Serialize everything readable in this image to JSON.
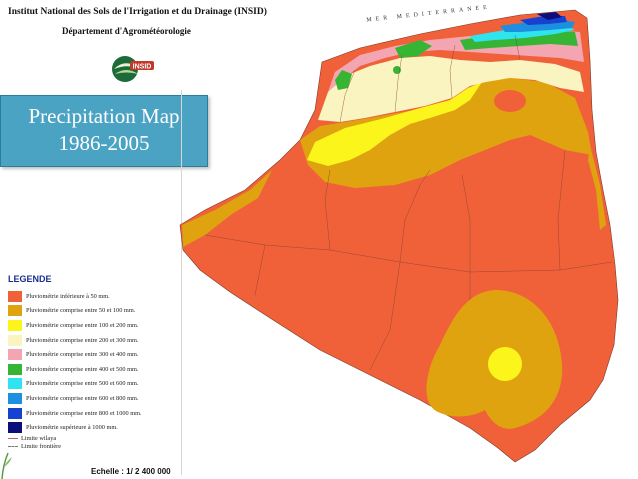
{
  "header": {
    "institute": "Institut National des Sols de l'Irrigation et du Drainage (INSID)",
    "department": "Département d'Agrométéorologie",
    "logo_text": "INSID"
  },
  "title": {
    "line1": "Precipitation Map",
    "line2": "1986-2005"
  },
  "map": {
    "sea_label": "MER MEDITERRANEE"
  },
  "legend": {
    "title": "LEGENDE",
    "items": [
      {
        "label": "Pluviométrie inférieure à 50 mm.",
        "color": "#f0613a"
      },
      {
        "label": "Pluviométrie comprise entre 50 et 100 mm.",
        "color": "#dfa30f"
      },
      {
        "label": "Pluviométrie comprise entre 100 et 200 mm.",
        "color": "#fbf51c"
      },
      {
        "label": "Pluviométrie comprise entre 200 et 300 mm.",
        "color": "#faf4c0"
      },
      {
        "label": "Pluviométrie comprise entre 300 et 400 mm.",
        "color": "#f3a6b2"
      },
      {
        "label": "Pluviométrie comprise entre 400 et 500 mm.",
        "color": "#35b533"
      },
      {
        "label": "Pluviométrie comprise entre 500 et 600 mm.",
        "color": "#2fe4ee"
      },
      {
        "label": "Pluviométrie comprise entre 600 et 800 mm.",
        "color": "#1c8fe0"
      },
      {
        "label": "Pluviométrie comprise entre 800 et 1000 mm.",
        "color": "#1741d1"
      },
      {
        "label": "Pluviométrie supérieure à 1000 mm.",
        "color": "#0c0f7a"
      }
    ],
    "limit_wilaya": "Limite wilaya",
    "limit_frontier": "Limite frontière"
  },
  "scale": "Echelle : 1/ 2 400 000"
}
